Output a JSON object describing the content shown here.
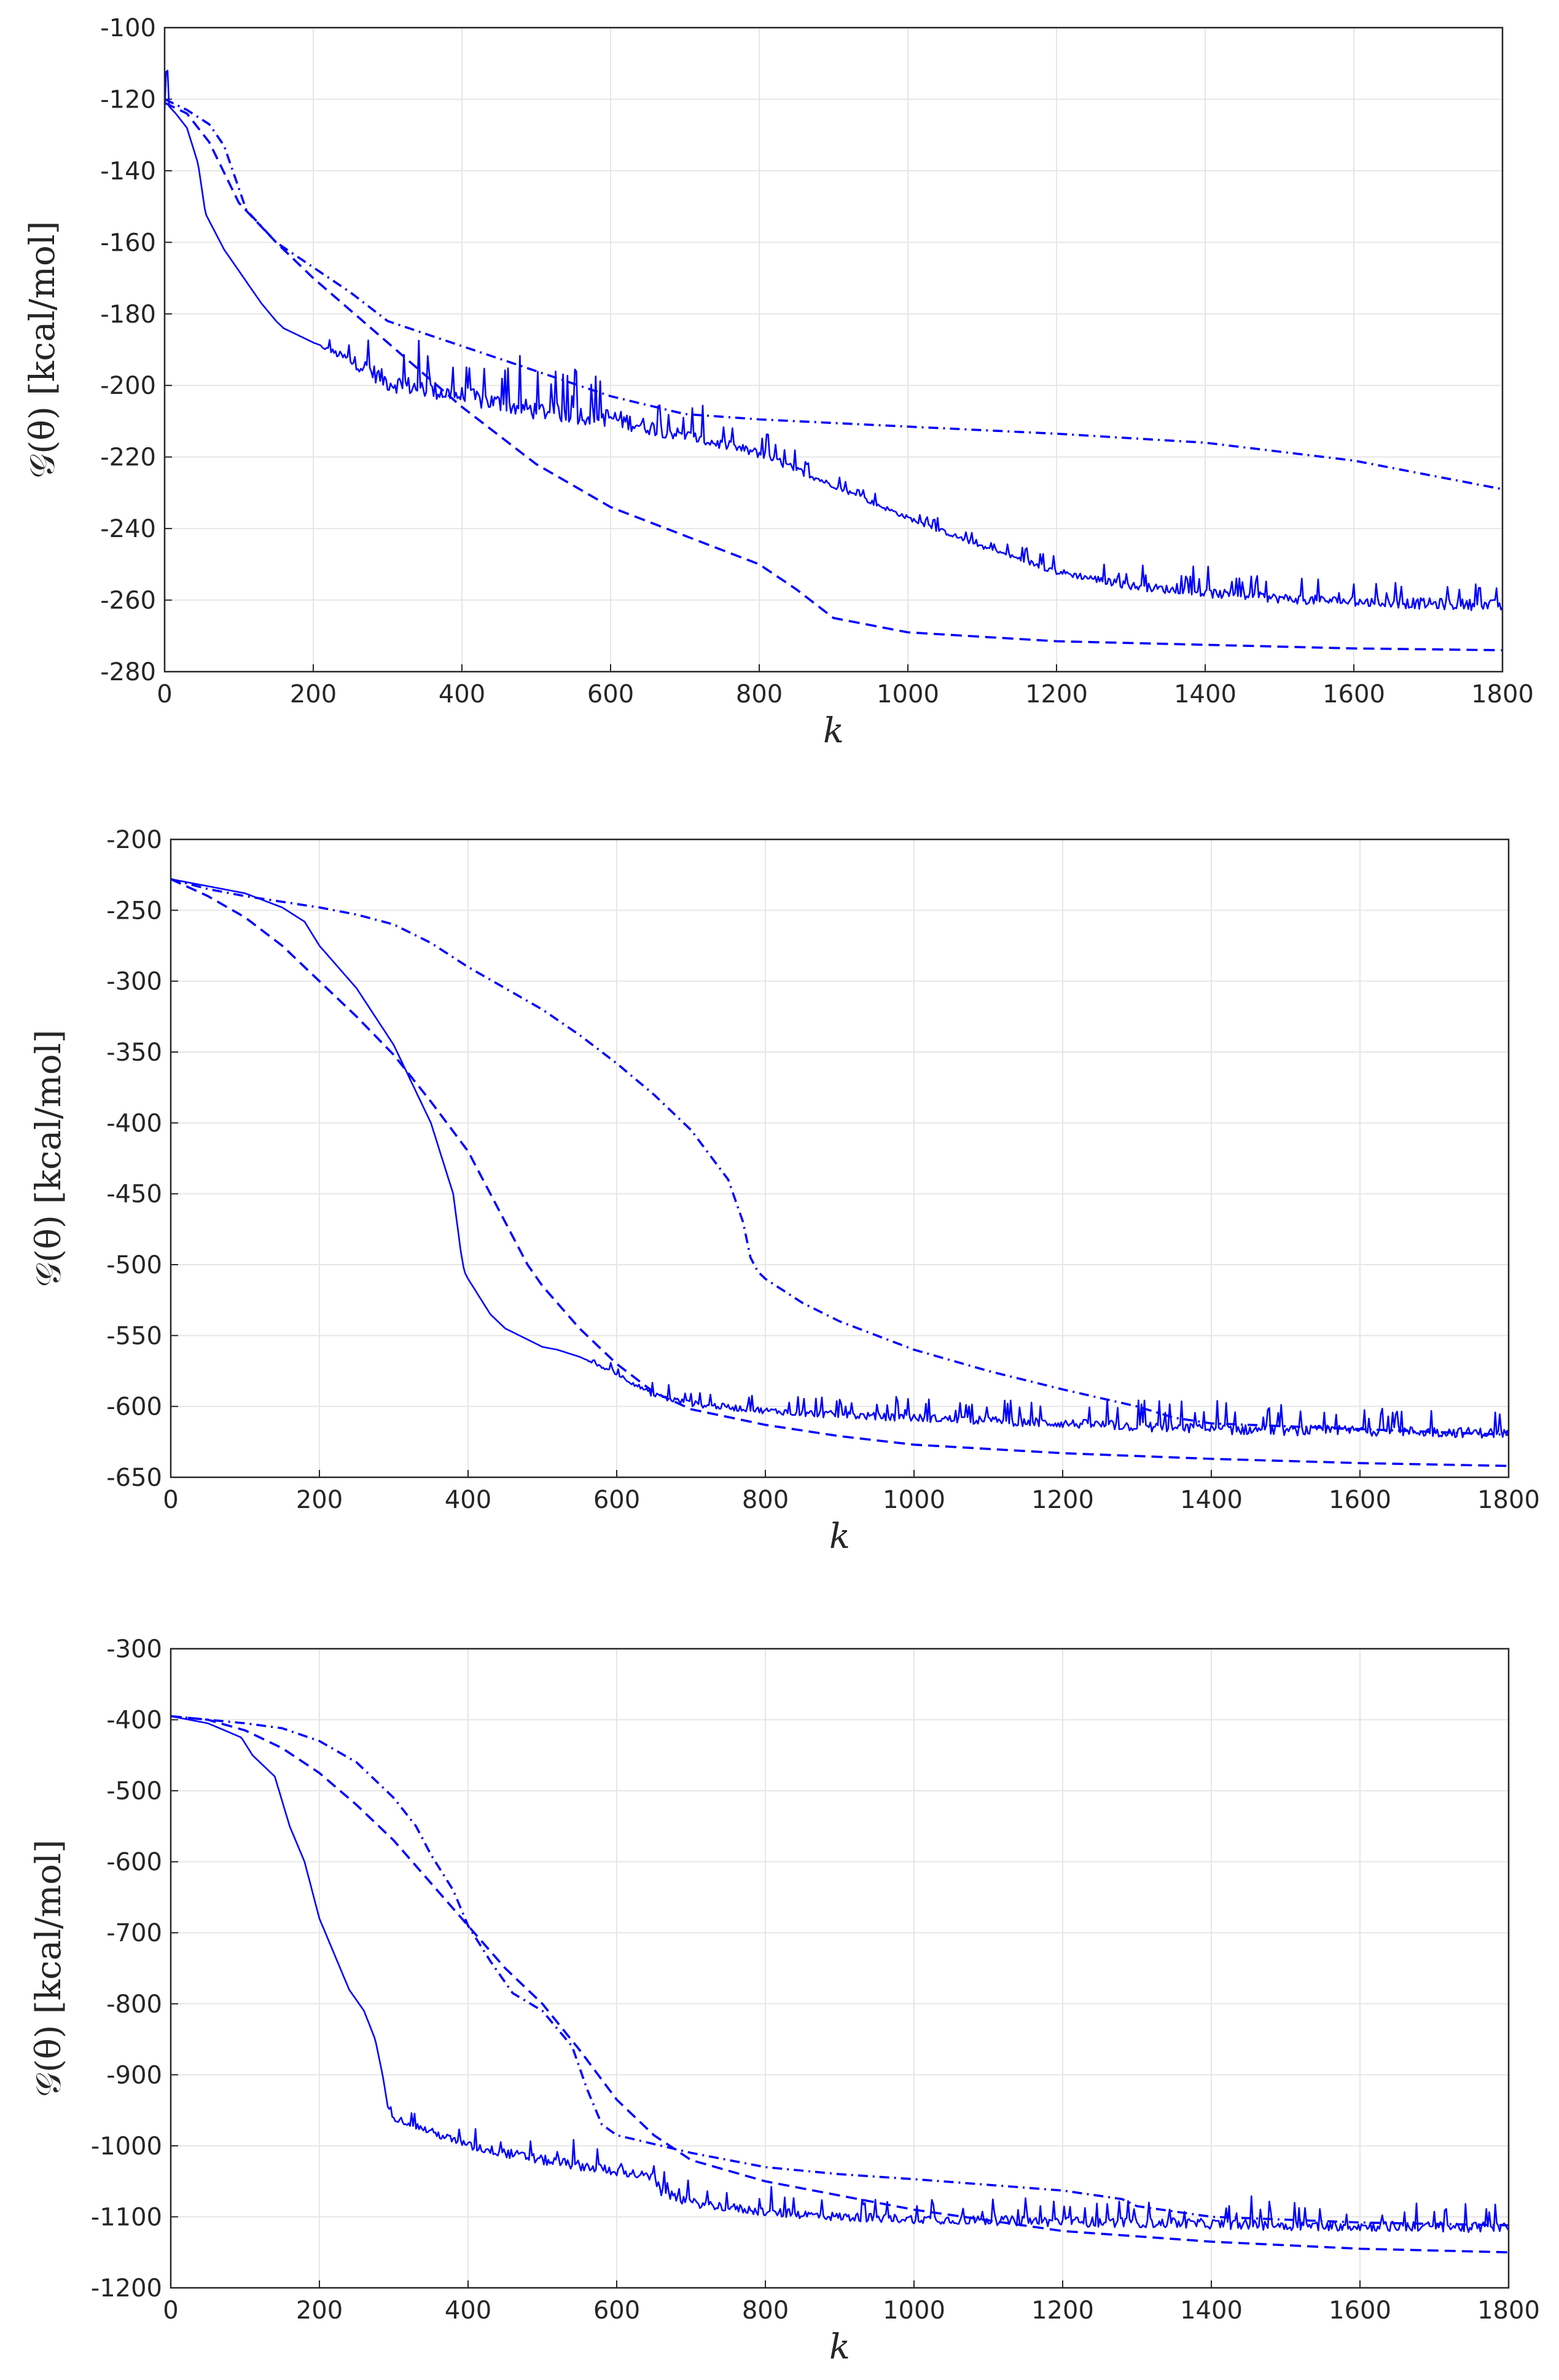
{
  "chart_data": [
    {
      "type": "line",
      "title": "",
      "xlabel": "k",
      "ylabel": "𝒢(θ) [kcal/mol]",
      "xlim": [
        0,
        1800
      ],
      "ylim": [
        -280,
        -100
      ],
      "xticks": [
        "0",
        "200",
        "400",
        "600",
        "800",
        "1000",
        "1200",
        "1400",
        "1600",
        "1800"
      ],
      "yticks": [
        "-100",
        "-120",
        "-140",
        "-160",
        "-180",
        "-200",
        "-220",
        "-240",
        "-260",
        "-280"
      ],
      "grid": true,
      "color": "#0000ff",
      "series": [
        {
          "name": "solid",
          "style": "solid",
          "x": [
            0,
            3,
            6,
            15,
            30,
            45,
            55,
            80,
            100,
            130,
            150,
            160,
            200,
            270,
            300,
            400,
            500,
            600,
            700,
            800,
            900,
            1000,
            1100,
            1200,
            1300,
            1400,
            1500,
            1600,
            1700,
            1800
          ],
          "y": [
            -123,
            -107,
            -122,
            -124,
            -128,
            -138,
            -152,
            -162,
            -168,
            -177,
            -182,
            -184,
            -188,
            -195,
            -199,
            -203,
            -207,
            -209,
            -214,
            -219,
            -228,
            -237,
            -245,
            -252,
            -256,
            -258,
            -259.5,
            -260.5,
            -261,
            -261.5
          ],
          "noise": [
            0,
            0,
            0,
            0,
            0,
            0,
            0,
            0,
            0,
            0,
            0,
            0,
            0,
            5,
            6,
            6,
            6,
            6,
            4,
            3,
            1.5,
            1.5,
            1.5,
            2,
            2.5,
            3,
            3,
            3,
            3.5,
            3.5
          ]
        },
        {
          "name": "dashed",
          "style": "dashed",
          "x": [
            0,
            30,
            60,
            100,
            150,
            200,
            300,
            400,
            500,
            600,
            700,
            800,
            850,
            900,
            1000,
            1200,
            1400,
            1600,
            1800
          ],
          "y": [
            -121,
            -124,
            -132,
            -149,
            -160,
            -170,
            -188,
            -206,
            -222,
            -234,
            -242,
            -250,
            -257,
            -265,
            -269,
            -271.5,
            -272.5,
            -273.5,
            -274
          ]
        },
        {
          "name": "dash-dot",
          "style": "dashdot",
          "x": [
            0,
            30,
            60,
            80,
            100,
            110,
            150,
            200,
            250,
            300,
            400,
            500,
            600,
            700,
            800,
            1000,
            1200,
            1400,
            1600,
            1800
          ],
          "y": [
            -120,
            -123,
            -127,
            -133,
            -145,
            -151,
            -160,
            -167,
            -174,
            -182,
            -189,
            -196,
            -203,
            -208,
            -209.5,
            -211.5,
            -213.5,
            -216,
            -221,
            -229
          ]
        }
      ]
    },
    {
      "type": "line",
      "title": "",
      "xlabel": "k",
      "ylabel": "𝒢(θ) [kcal/mol]",
      "xlim": [
        0,
        1800
      ],
      "ylim": [
        -650,
        -200
      ],
      "xticks": [
        "0",
        "200",
        "400",
        "600",
        "800",
        "1000",
        "1200",
        "1400",
        "1600",
        "1800"
      ],
      "yticks": [
        "-200",
        "-250",
        "-300",
        "-350",
        "-400",
        "-450",
        "-500",
        "-550",
        "-600",
        "-650"
      ],
      "grid": true,
      "color": "#0000ff",
      "series": [
        {
          "name": "solid",
          "style": "solid",
          "x": [
            0,
            50,
            100,
            150,
            180,
            200,
            250,
            300,
            350,
            380,
            390,
            395,
            400,
            430,
            450,
            500,
            520,
            550,
            600,
            650,
            700,
            800,
            900,
            1000,
            1100,
            1200,
            1300,
            1400,
            1500,
            1600,
            1700,
            1800
          ],
          "y": [
            -228,
            -233,
            -238,
            -248,
            -258,
            -275,
            -305,
            -345,
            -400,
            -450,
            -490,
            -505,
            -510,
            -535,
            -545,
            -558,
            -560,
            -565,
            -577,
            -592,
            -598,
            -603,
            -606,
            -608,
            -610,
            -612,
            -614,
            -616,
            -617,
            -617,
            -618,
            -619
          ],
          "noise": [
            0,
            0,
            0,
            0,
            0,
            0,
            0,
            0,
            0,
            0,
            0,
            0,
            0,
            0,
            0,
            0,
            0,
            0,
            3,
            4,
            5,
            5,
            6,
            6,
            7,
            7,
            8,
            8,
            8,
            8,
            8,
            8
          ]
        },
        {
          "name": "dashed",
          "style": "dashed",
          "x": [
            0,
            50,
            100,
            150,
            200,
            250,
            300,
            350,
            400,
            450,
            480,
            500,
            550,
            600,
            650,
            700,
            800,
            900,
            1000,
            1200,
            1400,
            1600,
            1800
          ],
          "y": [
            -228,
            -240,
            -255,
            -275,
            -300,
            -325,
            -352,
            -385,
            -420,
            -470,
            -500,
            -515,
            -545,
            -570,
            -590,
            -602,
            -613,
            -621,
            -627,
            -633,
            -637,
            -640,
            -642
          ]
        },
        {
          "name": "dash-dot",
          "style": "dashdot",
          "x": [
            0,
            50,
            100,
            150,
            200,
            250,
            300,
            350,
            400,
            450,
            500,
            550,
            600,
            650,
            700,
            750,
            770,
            780,
            790,
            800,
            850,
            900,
            1000,
            1100,
            1200,
            1300,
            1350,
            1400,
            1600,
            1800
          ],
          "y": [
            -228,
            -235,
            -240,
            -244,
            -248,
            -253,
            -260,
            -273,
            -290,
            -305,
            -320,
            -338,
            -358,
            -380,
            -405,
            -440,
            -470,
            -495,
            -505,
            -510,
            -527,
            -540,
            -560,
            -575,
            -588,
            -600,
            -608,
            -612,
            -616,
            -620
          ]
        }
      ]
    },
    {
      "type": "line",
      "title": "",
      "xlabel": "k",
      "ylabel": "𝒢(θ) [kcal/mol]",
      "xlim": [
        0,
        1800
      ],
      "ylim": [
        -1200,
        -300
      ],
      "xticks": [
        "0",
        "200",
        "400",
        "600",
        "800",
        "1000",
        "1200",
        "1400",
        "1600",
        "1800"
      ],
      "yticks": [
        "-300",
        "-400",
        "-500",
        "-600",
        "-700",
        "-800",
        "-900",
        "-1000",
        "-1100",
        "-1200"
      ],
      "grid": true,
      "color": "#0000ff",
      "series": [
        {
          "name": "solid",
          "style": "solid",
          "x": [
            0,
            50,
            95,
            110,
            140,
            160,
            180,
            200,
            220,
            240,
            260,
            275,
            285,
            292,
            300,
            350,
            400,
            500,
            600,
            650,
            660,
            700,
            800,
            900,
            1000,
            1100,
            1200,
            1300,
            1400,
            1500,
            1600,
            1700,
            1800
          ],
          "y": [
            -395,
            -405,
            -425,
            -450,
            -480,
            -550,
            -600,
            -680,
            -730,
            -780,
            -810,
            -850,
            -900,
            -945,
            -960,
            -980,
            -1000,
            -1020,
            -1035,
            -1045,
            -1065,
            -1080,
            -1093,
            -1100,
            -1103,
            -1105,
            -1107,
            -1108,
            -1110,
            -1112,
            -1113,
            -1114,
            -1115
          ],
          "noise": [
            0,
            0,
            0,
            0,
            0,
            0,
            0,
            0,
            0,
            0,
            0,
            0,
            0,
            0,
            10,
            12,
            14,
            16,
            16,
            14,
            14,
            14,
            14,
            14,
            14,
            15,
            16,
            16,
            16,
            16,
            16,
            16,
            16
          ]
        },
        {
          "name": "dashed",
          "style": "dashed",
          "x": [
            0,
            50,
            100,
            150,
            200,
            250,
            300,
            350,
            400,
            450,
            500,
            550,
            600,
            650,
            700,
            800,
            900,
            1000,
            1100,
            1200,
            1400,
            1600,
            1800
          ],
          "y": [
            -395,
            -400,
            -415,
            -440,
            -475,
            -520,
            -570,
            -630,
            -690,
            -750,
            -800,
            -865,
            -935,
            -985,
            -1020,
            -1050,
            -1070,
            -1090,
            -1105,
            -1120,
            -1135,
            -1145,
            -1150
          ]
        },
        {
          "name": "dash-dot",
          "style": "dashdot",
          "x": [
            0,
            50,
            100,
            150,
            200,
            250,
            300,
            330,
            350,
            380,
            400,
            430,
            460,
            500,
            540,
            560,
            580,
            600,
            700,
            800,
            900,
            1000,
            1100,
            1200,
            1280,
            1300,
            1400,
            1600,
            1800
          ],
          "y": [
            -395,
            -400,
            -405,
            -412,
            -430,
            -460,
            -510,
            -550,
            -590,
            -640,
            -690,
            -740,
            -785,
            -810,
            -860,
            -920,
            -970,
            -985,
            -1010,
            -1030,
            -1040,
            -1047,
            -1055,
            -1063,
            -1075,
            -1085,
            -1100,
            -1108,
            -1112
          ]
        }
      ]
    }
  ]
}
